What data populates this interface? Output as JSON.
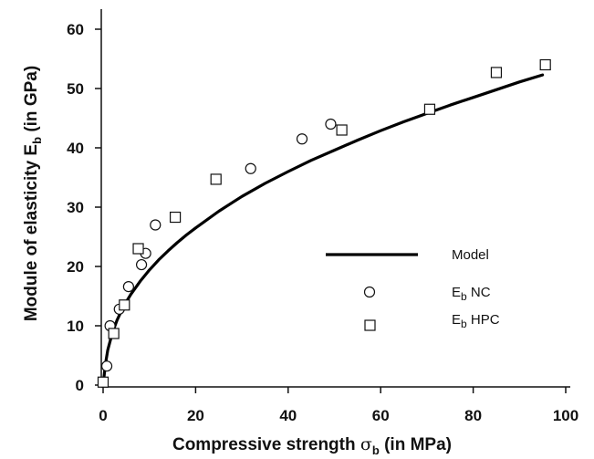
{
  "chart_data": {
    "type": "scatter",
    "xlabel": {
      "prefix": "Compressive strength ",
      "symbol": "σ",
      "sub": "b",
      "suffix": " (in MPa)"
    },
    "ylabel": {
      "prefix": "Module of elasticity ",
      "symbol": "E",
      "sub": "b",
      "suffix": " (in GPa)"
    },
    "xlim": [
      0,
      100
    ],
    "ylim": [
      0,
      60
    ],
    "x_ticks": [
      "0",
      "20",
      "40",
      "60",
      "80",
      "100"
    ],
    "y_ticks": [
      "0",
      "10",
      "20",
      "30",
      "40",
      "50",
      "60"
    ],
    "grid": false,
    "legend_position": "right",
    "series": [
      {
        "name": "Model",
        "kind": "line",
        "x": [
          0,
          0.5,
          1,
          2,
          3,
          4,
          5,
          6,
          7,
          8,
          10,
          12,
          14,
          16,
          18,
          20,
          25,
          30,
          35,
          40,
          45,
          50,
          55,
          60,
          65,
          70,
          75,
          80,
          85,
          90,
          95
        ],
        "y": [
          0,
          3.5,
          5.9,
          8.8,
          10.9,
          12.6,
          14.0,
          15.3,
          16.4,
          17.5,
          19.4,
          21.1,
          22.6,
          24.0,
          25.3,
          26.5,
          29.3,
          31.8,
          34.0,
          36.0,
          37.9,
          39.6,
          41.3,
          42.9,
          44.4,
          45.8,
          47.2,
          48.5,
          49.8,
          51.1,
          52.3
        ]
      },
      {
        "name": {
          "main": "E",
          "sub": "b",
          "rest": " NC"
        },
        "kind": "circle",
        "points": [
          [
            0.8,
            3.2
          ],
          [
            1.5,
            10.0
          ],
          [
            3.5,
            12.8
          ],
          [
            5.5,
            16.6
          ],
          [
            8.3,
            20.3
          ],
          [
            9.2,
            22.2
          ],
          [
            11.3,
            27.0
          ],
          [
            31.9,
            36.5
          ],
          [
            43.0,
            41.5
          ],
          [
            49.2,
            44.0
          ]
        ]
      },
      {
        "name": {
          "main": "E",
          "sub": "b",
          "rest": " HPC"
        },
        "kind": "square",
        "points": [
          [
            0.0,
            0.5
          ],
          [
            2.3,
            8.7
          ],
          [
            4.6,
            13.5
          ],
          [
            7.6,
            23.0
          ],
          [
            15.6,
            28.3
          ],
          [
            24.4,
            34.7
          ],
          [
            51.6,
            43.0
          ],
          [
            70.6,
            46.5
          ],
          [
            85.0,
            52.7
          ],
          [
            95.6,
            54.0
          ]
        ]
      }
    ]
  }
}
